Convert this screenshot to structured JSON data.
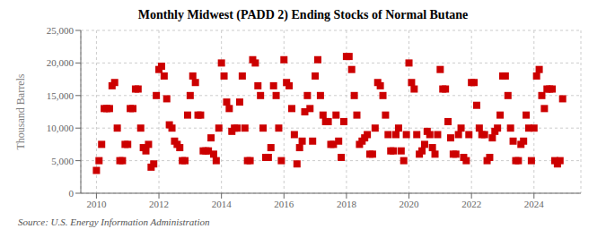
{
  "chart_data": {
    "type": "scatter",
    "title": "Monthly Midwest (PADD 2) Ending Stocks of Normal Butane",
    "ylabel": "Thousand Barrels",
    "annotation": "Source: U.S. Energy Information Administration",
    "color": "#CC0000",
    "marker": "square",
    "grid": true,
    "xlim": [
      2009.5,
      2025.5
    ],
    "xticks": [
      2010,
      2012,
      2014,
      2016,
      2018,
      2020,
      2022,
      2024
    ],
    "ylim": [
      0,
      25000
    ],
    "yticks": [
      0,
      {
        "value": 5000,
        "label": "5,000"
      },
      {
        "value": 10000,
        "label": "10,000"
      },
      {
        "value": 15000,
        "label": "15,000"
      },
      {
        "value": 20000,
        "label": "20,000"
      },
      {
        "value": 25000,
        "label": "25,000"
      }
    ],
    "x": [
      2010.0,
      2010.083,
      2010.167,
      2010.25,
      2010.333,
      2010.417,
      2010.5,
      2010.583,
      2010.667,
      2010.75,
      2010.833,
      2010.917,
      2011.0,
      2011.083,
      2011.167,
      2011.25,
      2011.333,
      2011.417,
      2011.5,
      2011.583,
      2011.667,
      2011.75,
      2011.833,
      2011.917,
      2012.0,
      2012.083,
      2012.167,
      2012.25,
      2012.333,
      2012.417,
      2012.5,
      2012.583,
      2012.667,
      2012.75,
      2012.833,
      2012.917,
      2013.0,
      2013.083,
      2013.167,
      2013.25,
      2013.333,
      2013.417,
      2013.5,
      2013.583,
      2013.667,
      2013.75,
      2013.833,
      2013.917,
      2014.0,
      2014.083,
      2014.167,
      2014.25,
      2014.333,
      2014.417,
      2014.5,
      2014.583,
      2014.667,
      2014.75,
      2014.833,
      2014.917,
      2015.0,
      2015.083,
      2015.167,
      2015.25,
      2015.333,
      2015.417,
      2015.5,
      2015.583,
      2015.667,
      2015.75,
      2015.833,
      2015.917,
      2016.0,
      2016.083,
      2016.167,
      2016.25,
      2016.333,
      2016.417,
      2016.5,
      2016.583,
      2016.667,
      2016.75,
      2016.833,
      2016.917,
      2017.0,
      2017.083,
      2017.167,
      2017.25,
      2017.333,
      2017.417,
      2017.5,
      2017.583,
      2017.667,
      2017.75,
      2017.833,
      2017.917,
      2018.0,
      2018.083,
      2018.167,
      2018.25,
      2018.333,
      2018.417,
      2018.5,
      2018.583,
      2018.667,
      2018.75,
      2018.833,
      2018.917,
      2019.0,
      2019.083,
      2019.167,
      2019.25,
      2019.333,
      2019.417,
      2019.5,
      2019.583,
      2019.667,
      2019.75,
      2019.833,
      2019.917,
      2020.0,
      2020.083,
      2020.167,
      2020.25,
      2020.333,
      2020.417,
      2020.5,
      2020.583,
      2020.667,
      2020.75,
      2020.833,
      2020.917,
      2021.0,
      2021.083,
      2021.167,
      2021.25,
      2021.333,
      2021.417,
      2021.5,
      2021.583,
      2021.667,
      2021.75,
      2021.833,
      2021.917,
      2022.0,
      2022.083,
      2022.167,
      2022.25,
      2022.333,
      2022.417,
      2022.5,
      2022.583,
      2022.667,
      2022.75,
      2022.833,
      2022.917,
      2023.0,
      2023.083,
      2023.167,
      2023.25,
      2023.333,
      2023.417,
      2023.5,
      2023.583,
      2023.667,
      2023.75,
      2023.833,
      2023.917,
      2024.0,
      2024.083,
      2024.167,
      2024.25,
      2024.333,
      2024.417,
      2024.5,
      2024.583,
      2024.667,
      2024.75,
      2024.833,
      2024.917
    ],
    "values": [
      3500,
      5000,
      7500,
      13000,
      13000,
      13000,
      16500,
      17000,
      10000,
      5000,
      5000,
      7500,
      7500,
      13000,
      13000,
      16000,
      16000,
      10000,
      7000,
      6500,
      7500,
      4000,
      4500,
      15000,
      19000,
      19500,
      18000,
      14500,
      10500,
      10000,
      8000,
      7500,
      7000,
      5000,
      5000,
      12000,
      15000,
      18000,
      17000,
      12000,
      12000,
      6500,
      6500,
      6500,
      8500,
      6000,
      5000,
      10000,
      20000,
      18000,
      14000,
      13000,
      9500,
      10000,
      10000,
      14000,
      18000,
      10000,
      5000,
      5000,
      20500,
      20000,
      16500,
      15000,
      10000,
      5500,
      5500,
      7000,
      16500,
      15000,
      10000,
      5000,
      20500,
      17000,
      16500,
      13000,
      9000,
      4500,
      7000,
      8000,
      12500,
      15000,
      13000,
      8000,
      18000,
      20500,
      15000,
      12000,
      11000,
      11000,
      7500,
      7500,
      12000,
      8000,
      5500,
      11000,
      21000,
      21000,
      19000,
      15000,
      12000,
      7500,
      8000,
      8500,
      9000,
      6000,
      6000,
      10000,
      17000,
      16500,
      15000,
      12000,
      9000,
      6500,
      6500,
      9000,
      10000,
      6500,
      5000,
      9000,
      20000,
      17000,
      16000,
      9000,
      6000,
      6500,
      7500,
      9500,
      9000,
      7000,
      6000,
      9000,
      19000,
      16000,
      16000,
      11000,
      8500,
      6000,
      6000,
      9000,
      10000,
      5500,
      5000,
      9000,
      17000,
      17000,
      13500,
      10000,
      9000,
      9000,
      5000,
      5500,
      8500,
      9500,
      10000,
      12000,
      18000,
      18000,
      15000,
      10000,
      8000,
      5000,
      5000,
      7500,
      8000,
      12000,
      10000,
      5000,
      10000,
      18000,
      19000,
      15000,
      13000,
      16000,
      16000,
      16000,
      5000,
      4500,
      5000,
      14500
    ]
  }
}
